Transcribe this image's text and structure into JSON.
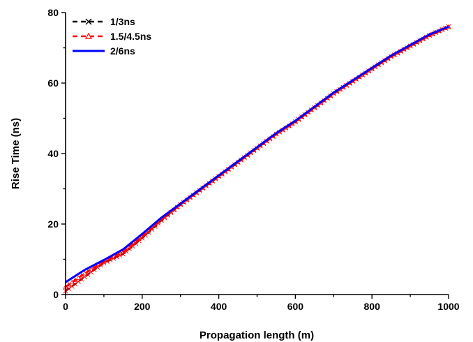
{
  "chart_data": {
    "type": "line",
    "title": "",
    "xlabel": "Propagation length (m)",
    "ylabel": "Rise Time (ns)",
    "xlim": [
      0,
      1000
    ],
    "ylim": [
      0,
      80
    ],
    "xticks": [
      0,
      200,
      400,
      600,
      800,
      1000
    ],
    "yticks": [
      0,
      20,
      40,
      60,
      80
    ],
    "xtick_labels": [
      "0",
      "200",
      "400",
      "600",
      "800",
      "1000"
    ],
    "ytick_labels": [
      "0",
      "20",
      "40",
      "60",
      "80"
    ],
    "grid": false,
    "legend_position": "top-left",
    "series": [
      {
        "name": "1/3ns",
        "color": "#000000",
        "line_style": "dashed",
        "marker": "x",
        "marker_color": "#ff0000",
        "x": [
          0,
          50,
          100,
          150,
          200,
          250,
          300,
          350,
          400,
          450,
          500,
          550,
          600,
          650,
          700,
          750,
          800,
          850,
          900,
          950,
          1000
        ],
        "y": [
          1.0,
          5.0,
          9.0,
          11.5,
          16.0,
          21.0,
          25.5,
          29.5,
          33.5,
          37.5,
          41.5,
          45.5,
          49.0,
          53.0,
          57.0,
          60.5,
          64.0,
          67.5,
          70.5,
          73.5,
          76.0
        ]
      },
      {
        "name": "1.5/4.5ns",
        "color": "#ff0000",
        "line_style": "dashed",
        "marker": "triangle",
        "marker_color": "#ff0000",
        "x": [
          0,
          50,
          100,
          150,
          200,
          250,
          300,
          350,
          400,
          450,
          500,
          550,
          600,
          650,
          700,
          750,
          800,
          850,
          900,
          950,
          1000
        ],
        "y": [
          2.2,
          6.0,
          9.3,
          12.0,
          16.5,
          21.3,
          25.6,
          29.6,
          33.6,
          37.6,
          41.6,
          45.6,
          49.1,
          53.1,
          57.1,
          60.6,
          64.1,
          67.6,
          70.6,
          73.6,
          76.0
        ]
      },
      {
        "name": "2/6ns",
        "color": "#0000ff",
        "line_style": "solid",
        "marker": "none",
        "marker_color": "#0000ff",
        "x": [
          0,
          50,
          100,
          150,
          200,
          250,
          300,
          350,
          400,
          450,
          500,
          550,
          600,
          650,
          700,
          750,
          800,
          850,
          900,
          950,
          1000
        ],
        "y": [
          3.5,
          7.0,
          9.8,
          12.8,
          17.2,
          21.8,
          25.8,
          29.8,
          33.8,
          37.8,
          41.8,
          45.8,
          49.3,
          53.3,
          57.3,
          60.8,
          64.3,
          67.8,
          70.8,
          73.8,
          76.0
        ]
      }
    ]
  }
}
